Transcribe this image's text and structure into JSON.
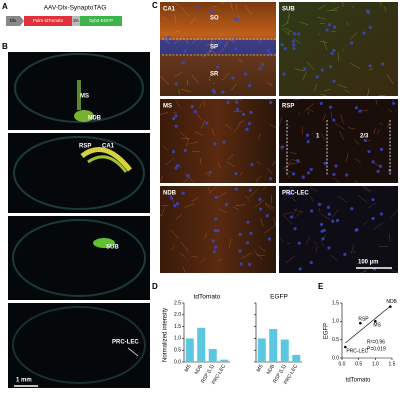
{
  "panel_a": {
    "label": "A",
    "construct": "AAV-Dlx-SynaptoTAG",
    "elements": [
      "Dlx",
      "Palm-tdTomato",
      "2A",
      "Syb2-EGFP"
    ]
  },
  "panel_b": {
    "label": "B",
    "regions": [
      "MS",
      "NDB",
      "RSP",
      "CA1",
      "SUB",
      "PRC-LEC"
    ],
    "scale_bar": "1 mm"
  },
  "panel_c": {
    "label": "C",
    "tiles": [
      {
        "region": "CA1",
        "layers": [
          "SO",
          "SP",
          "SR"
        ]
      },
      {
        "region": "SUB"
      },
      {
        "region": "MS"
      },
      {
        "region": "RSP",
        "layers": [
          "1",
          "2/3"
        ]
      },
      {
        "region": "NDB"
      },
      {
        "region": "PRC-LEC"
      }
    ],
    "scale_bar": "100 µm"
  },
  "panel_d": {
    "label": "D",
    "y_label": "Normalized intensity",
    "ylim": [
      0,
      2.5
    ],
    "yticks": [
      {
        "value": 0,
        "label": "0.0"
      },
      {
        "value": 0.5,
        "label": "0.5"
      },
      {
        "value": 1,
        "label": "1.0"
      },
      {
        "value": 1.5,
        "label": "1.5"
      },
      {
        "value": 2,
        "label": "2.0"
      },
      {
        "value": 2.5,
        "label": "2.5"
      }
    ],
    "categories": [
      "MS",
      "NDB",
      "RSP (L1)",
      "PRC-LEC"
    ],
    "color": "#5bc8e0",
    "series": [
      {
        "name": "tdTomato",
        "values": [
          1.0,
          1.45,
          0.55,
          0.1
        ]
      },
      {
        "name": "EGFP",
        "values": [
          1.0,
          1.4,
          0.95,
          0.3
        ]
      }
    ]
  },
  "panel_e": {
    "label": "E",
    "x_label": "tdTomato",
    "y_label": "EGFP",
    "xlim": [
      0,
      1.5
    ],
    "ylim": [
      0,
      1.5
    ],
    "xticks": [
      {
        "value": 0,
        "label": "0.0"
      },
      {
        "value": 0.5,
        "label": "0.5"
      },
      {
        "value": 1,
        "label": "1.0"
      },
      {
        "value": 1.5,
        "label": "1.5"
      }
    ],
    "yticks": [
      {
        "value": 0,
        "label": "0.0"
      },
      {
        "value": 0.5,
        "label": "0.5"
      },
      {
        "value": 1,
        "label": "1.0"
      },
      {
        "value": 1.5,
        "label": "1.5"
      }
    ],
    "points": [
      {
        "label": "PRC-LEC",
        "x": 0.1,
        "y": 0.3
      },
      {
        "label": "RSP",
        "x": 0.55,
        "y": 0.95
      },
      {
        "label": "MS",
        "x": 1.0,
        "y": 1.0
      },
      {
        "label": "NDB",
        "x": 1.45,
        "y": 1.4
      }
    ],
    "annotations": [
      "R²=0.96",
      "P=0.019"
    ]
  }
}
